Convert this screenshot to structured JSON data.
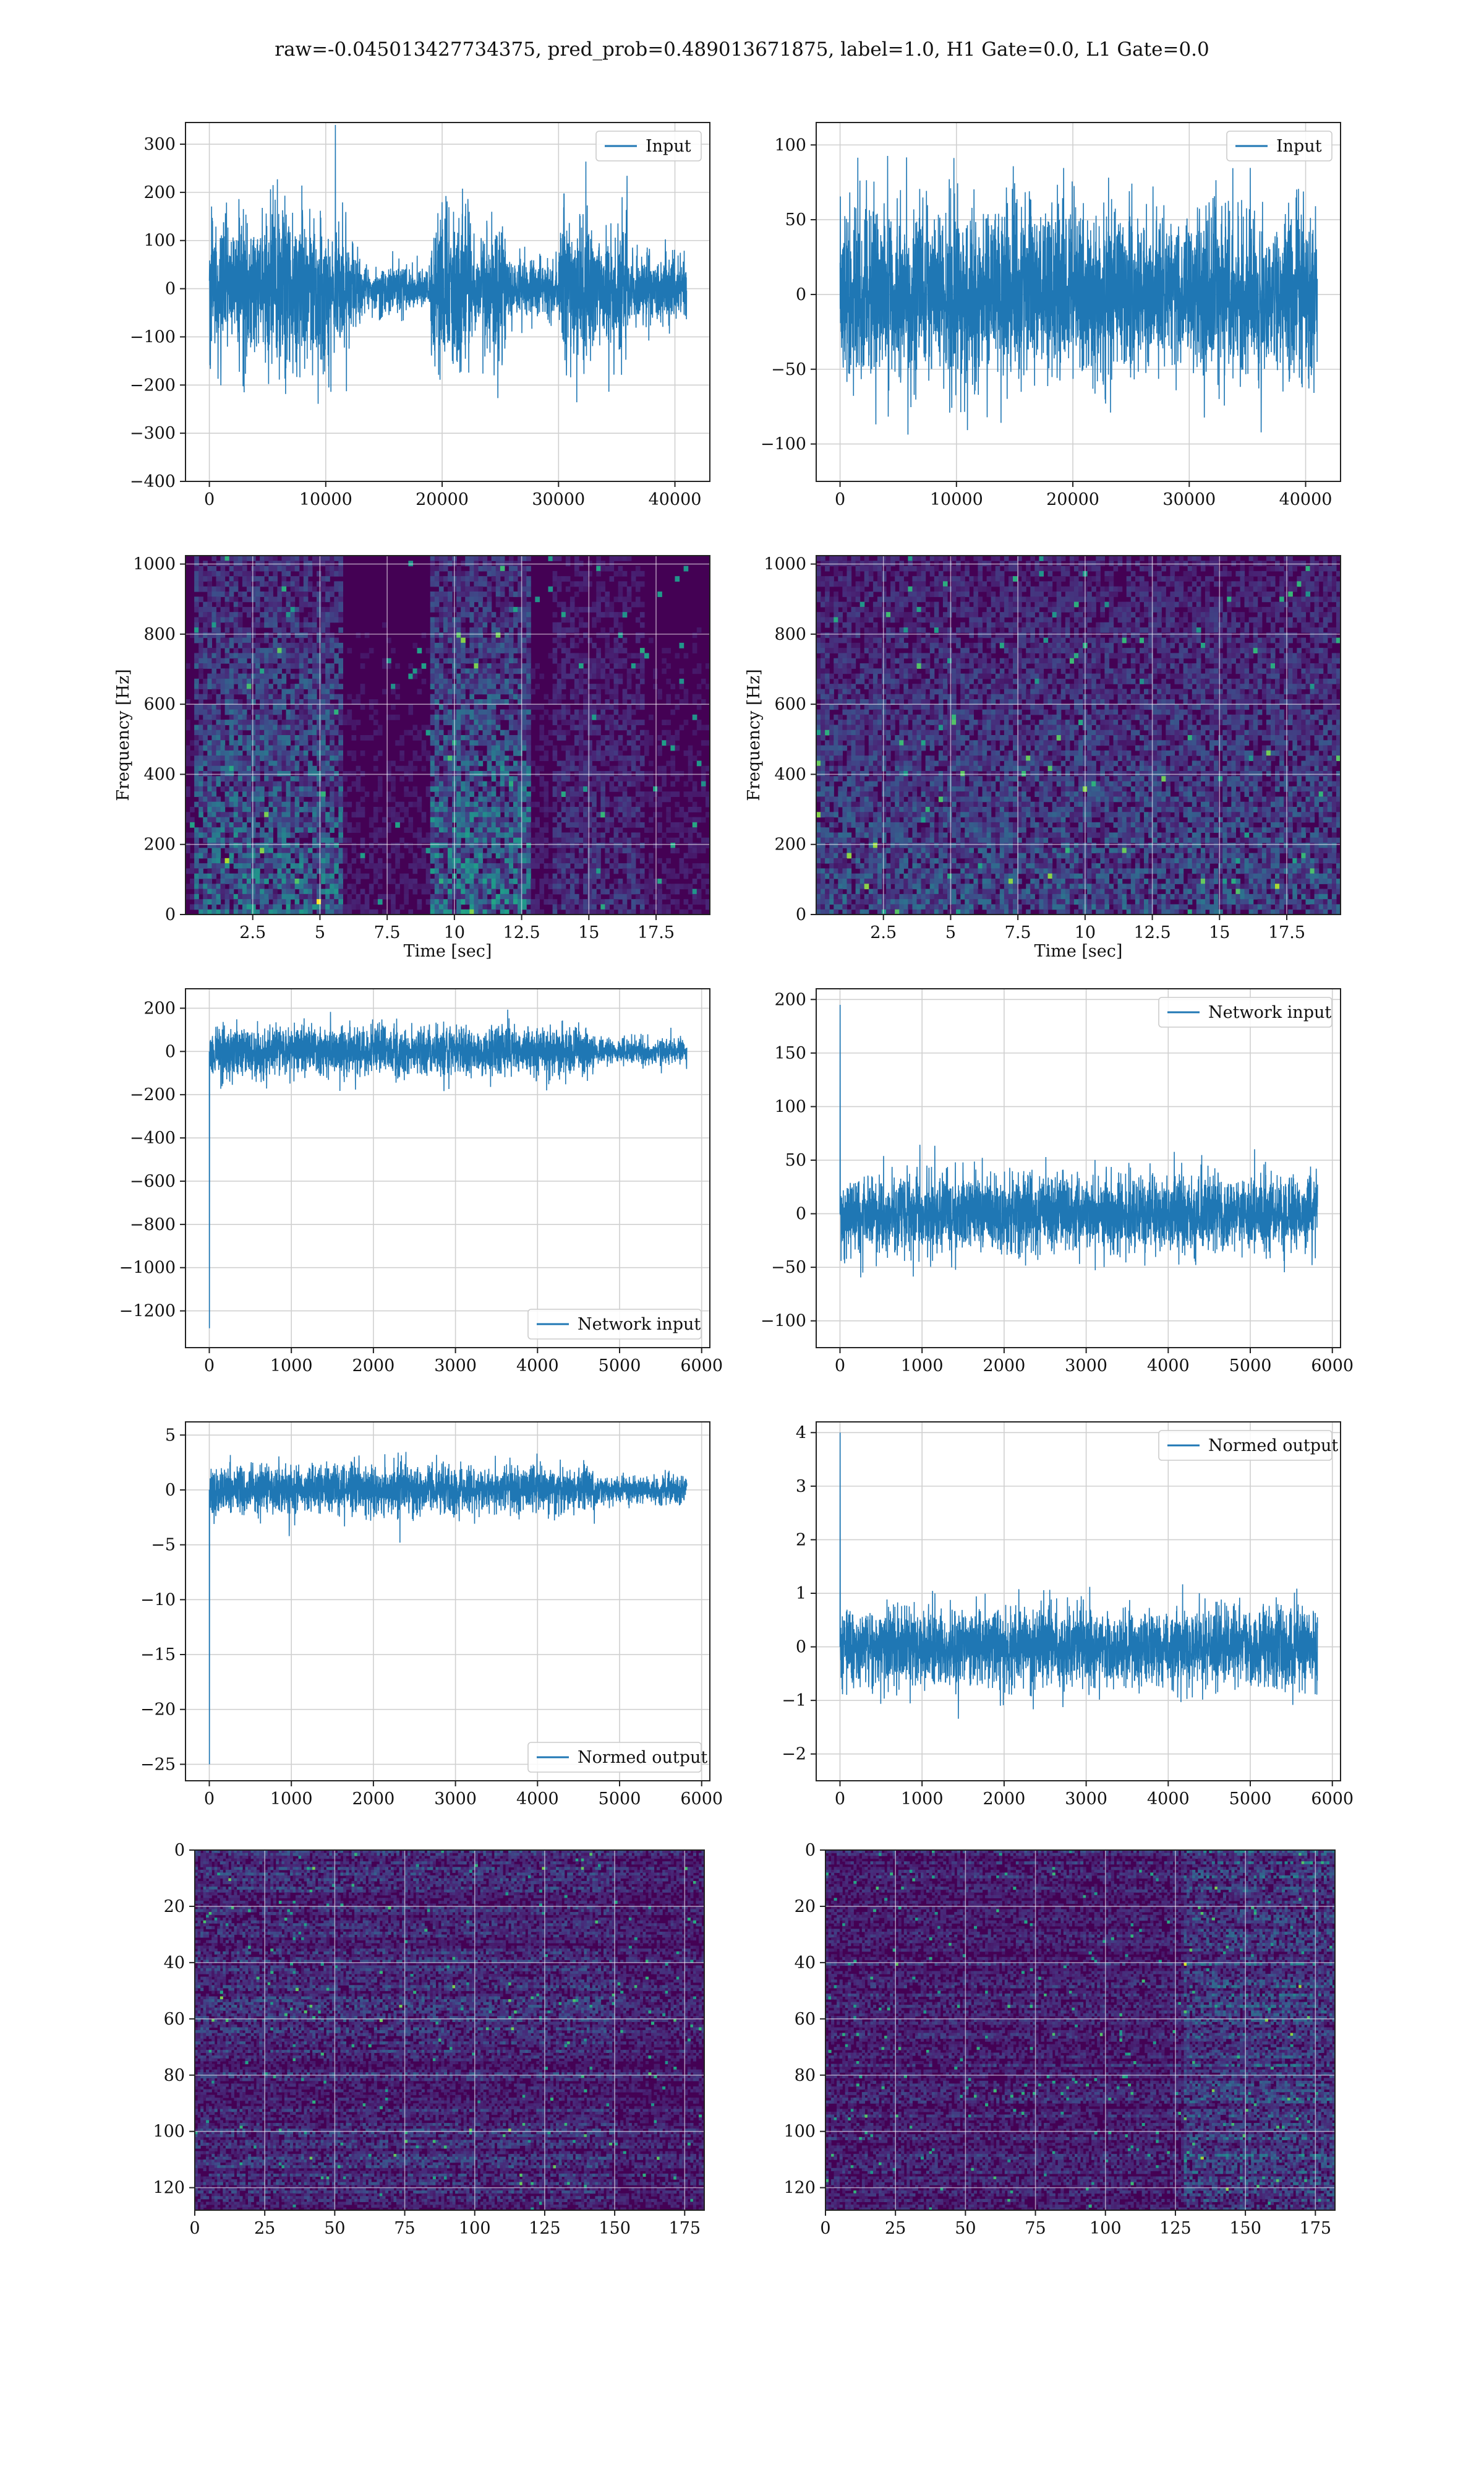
{
  "figure": {
    "title": "raw=-0.045013427734375, pred_prob=0.489013671875, label=1.0, H1 Gate=0.0, L1 Gate=0.0"
  },
  "colors": {
    "series": "#1f77b4",
    "grid": "#d0d0d0",
    "viridis_dark": "#440154"
  },
  "chart_data": [
    {
      "id": "input_h1",
      "type": "line",
      "x": [
        0,
        41000
      ],
      "xlim": [
        -2050,
        43000
      ],
      "ylim": [
        -400,
        345
      ],
      "xticks": [
        0,
        10000,
        20000,
        30000,
        40000
      ],
      "yticks": [
        -400,
        -300,
        -200,
        -100,
        0,
        100,
        200,
        300
      ],
      "legend": "Input",
      "legend_loc": "upper right",
      "grid": true
    },
    {
      "id": "input_l1",
      "type": "line",
      "x": [
        0,
        41000
      ],
      "xlim": [
        -2050,
        43000
      ],
      "ylim": [
        -125,
        115
      ],
      "xticks": [
        0,
        10000,
        20000,
        30000,
        40000
      ],
      "yticks": [
        -100,
        -50,
        0,
        50,
        100
      ],
      "legend": "Input",
      "legend_loc": "upper right",
      "grid": true
    },
    {
      "id": "spec_h1",
      "type": "heatmap",
      "xlim": [
        0,
        19.5
      ],
      "ylim": [
        0,
        1024
      ],
      "xticks": [
        2.5,
        5.0,
        7.5,
        10.0,
        12.5,
        15.0,
        17.5
      ],
      "yticks": [
        0,
        200,
        400,
        600,
        800,
        1000
      ],
      "xlabel": "Time [sec]",
      "ylabel": "Frequency [Hz]",
      "colormap": "viridis",
      "grid": true
    },
    {
      "id": "spec_l1",
      "type": "heatmap",
      "xlim": [
        0,
        19.5
      ],
      "ylim": [
        0,
        1024
      ],
      "xticks": [
        2.5,
        5.0,
        7.5,
        10.0,
        12.5,
        15.0,
        17.5
      ],
      "yticks": [
        0,
        200,
        400,
        600,
        800,
        1000
      ],
      "xlabel": "Time [sec]",
      "ylabel": "Frequency [Hz]",
      "colormap": "viridis",
      "grid": true
    },
    {
      "id": "net_h1",
      "type": "line",
      "x": [
        0,
        5820
      ],
      "xlim": [
        -290,
        6100
      ],
      "ylim": [
        -1370,
        290
      ],
      "xticks": [
        0,
        1000,
        2000,
        3000,
        4000,
        5000,
        6000
      ],
      "yticks": [
        -1200,
        -1000,
        -800,
        -600,
        -400,
        -200,
        0,
        200
      ],
      "legend": "Network input",
      "legend_loc": "lower right",
      "grid": true
    },
    {
      "id": "net_l1",
      "type": "line",
      "x": [
        0,
        5820
      ],
      "xlim": [
        -290,
        6100
      ],
      "ylim": [
        -125,
        210
      ],
      "xticks": [
        0,
        1000,
        2000,
        3000,
        4000,
        5000,
        6000
      ],
      "yticks": [
        -100,
        -50,
        0,
        50,
        100,
        150,
        200
      ],
      "legend": "Network input",
      "legend_loc": "upper right",
      "grid": true
    },
    {
      "id": "norm_h1",
      "type": "line",
      "x": [
        0,
        5820
      ],
      "xlim": [
        -290,
        6100
      ],
      "ylim": [
        -26.5,
        6.2
      ],
      "xticks": [
        0,
        1000,
        2000,
        3000,
        4000,
        5000,
        6000
      ],
      "yticks": [
        -25,
        -20,
        -15,
        -10,
        -5,
        0,
        5
      ],
      "legend": "Normed output",
      "legend_loc": "lower right",
      "grid": true
    },
    {
      "id": "norm_l1",
      "type": "line",
      "x": [
        0,
        5820
      ],
      "xlim": [
        -290,
        6100
      ],
      "ylim": [
        -2.5,
        4.2
      ],
      "xticks": [
        0,
        1000,
        2000,
        3000,
        4000,
        5000,
        6000
      ],
      "yticks": [
        -2,
        -1,
        0,
        1,
        2,
        3,
        4
      ],
      "legend": "Normed output",
      "legend_loc": "upper right",
      "grid": true
    },
    {
      "id": "img_h1",
      "type": "heatmap",
      "xlim": [
        0,
        182
      ],
      "ylim": [
        128,
        0
      ],
      "xticks": [
        0,
        25,
        50,
        75,
        100,
        125,
        150,
        175
      ],
      "yticks": [
        0,
        20,
        40,
        60,
        80,
        100,
        120
      ],
      "colormap": "viridis",
      "grid": true
    },
    {
      "id": "img_l1",
      "type": "heatmap",
      "xlim": [
        0,
        182
      ],
      "ylim": [
        128,
        0
      ],
      "xticks": [
        0,
        25,
        50,
        75,
        100,
        125,
        150,
        175
      ],
      "yticks": [
        0,
        20,
        40,
        60,
        80,
        100,
        120
      ],
      "colormap": "viridis",
      "grid": true
    }
  ]
}
